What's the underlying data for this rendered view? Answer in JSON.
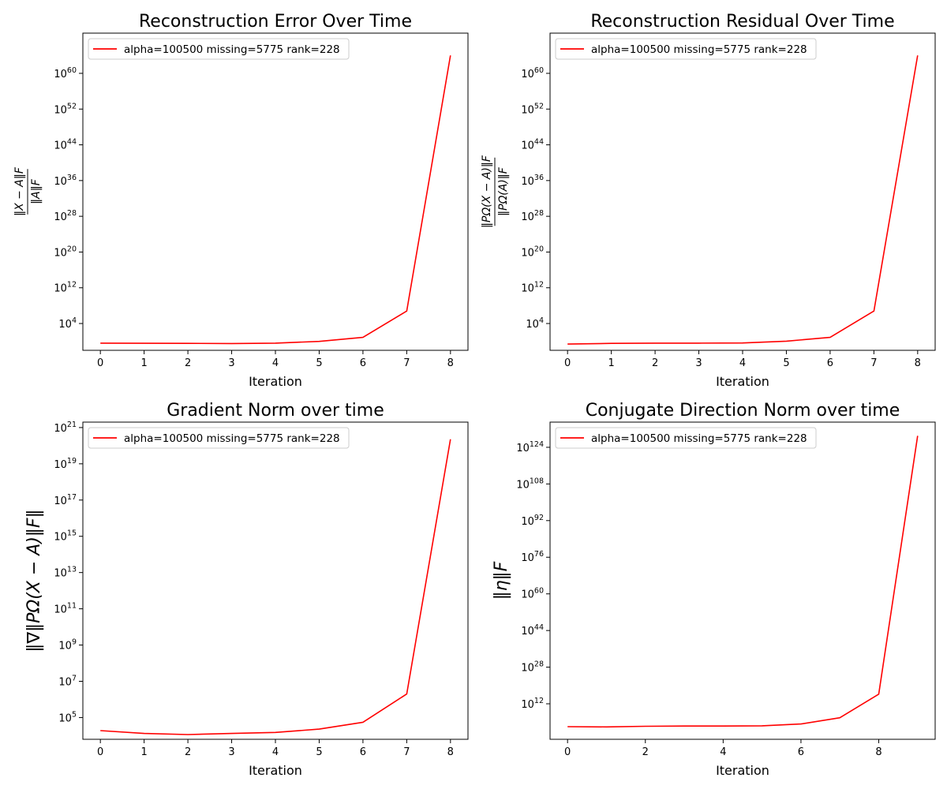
{
  "line_color": "#ff0000",
  "chart_data": [
    {
      "type": "line",
      "title": "Reconstruction Error Over Time",
      "xlabel": "Iteration",
      "ylabel": {
        "numerator": "‖X − A‖F",
        "denominator": "‖A‖F"
      },
      "yscale": "log",
      "grid": false,
      "legend_position": "top-left",
      "xlim": [
        -0.4,
        8.4
      ],
      "ylim_log10": [
        -2.0,
        69.0
      ],
      "xticks": [
        0,
        1,
        2,
        3,
        4,
        5,
        6,
        7,
        8
      ],
      "yticks_exp": [
        4,
        12,
        20,
        28,
        36,
        44,
        52,
        60
      ],
      "series": [
        {
          "name": "alpha=100500 missing=5775 rank=228",
          "color": "#ff0000",
          "x": [
            0,
            1,
            2,
            3,
            4,
            5,
            6,
            7,
            8
          ],
          "y_log10": [
            -0.4,
            -0.42,
            -0.45,
            -0.48,
            -0.4,
            0.0,
            0.9,
            6.8,
            64.0
          ]
        }
      ]
    },
    {
      "type": "line",
      "title": "Reconstruction Residual Over Time",
      "xlabel": "Iteration",
      "ylabel": {
        "numerator": "‖PΩ(X − A)‖F",
        "denominator": "‖PΩ(A)‖F"
      },
      "yscale": "log",
      "grid": false,
      "legend_position": "top-left",
      "xlim": [
        -0.4,
        8.4
      ],
      "ylim_log10": [
        -2.0,
        69.0
      ],
      "xticks": [
        0,
        1,
        2,
        3,
        4,
        5,
        6,
        7,
        8
      ],
      "yticks_exp": [
        4,
        12,
        20,
        28,
        36,
        44,
        52,
        60
      ],
      "series": [
        {
          "name": "alpha=100500 missing=5775 rank=228",
          "color": "#ff0000",
          "x": [
            0,
            1,
            2,
            3,
            4,
            5,
            6,
            7,
            8
          ],
          "y_log10": [
            -0.6,
            -0.45,
            -0.4,
            -0.4,
            -0.35,
            0.05,
            0.9,
            6.8,
            64.0
          ]
        }
      ]
    },
    {
      "type": "line",
      "title": "Gradient Norm over time",
      "xlabel": "Iteration",
      "ylabel": "‖∇‖PΩ(X − A)‖F‖",
      "yscale": "log",
      "grid": false,
      "legend_position": "top-left",
      "xlim": [
        -0.4,
        8.4
      ],
      "ylim_log10": [
        3.8,
        21.3
      ],
      "xticks": [
        0,
        1,
        2,
        3,
        4,
        5,
        6,
        7,
        8
      ],
      "yticks_exp": [
        5,
        7,
        9,
        11,
        13,
        15,
        17,
        19,
        21
      ],
      "series": [
        {
          "name": "alpha=100500 missing=5775 rank=228",
          "color": "#ff0000",
          "x": [
            0,
            1,
            2,
            3,
            4,
            5,
            6,
            7,
            8
          ],
          "y_log10": [
            4.28,
            4.12,
            4.06,
            4.12,
            4.18,
            4.36,
            4.74,
            6.3,
            20.35
          ]
        }
      ]
    },
    {
      "type": "line",
      "title": "Conjugate Direction Norm over time",
      "xlabel": "Iteration",
      "ylabel": "‖η‖F",
      "yscale": "log",
      "grid": false,
      "legend_position": "top-left",
      "xlim": [
        -0.45,
        9.45
      ],
      "ylim_log10": [
        -3.5,
        135.0
      ],
      "xticks": [
        0,
        2,
        4,
        6,
        8
      ],
      "yticks_exp": [
        12,
        28,
        44,
        60,
        76,
        92,
        108,
        124
      ],
      "series": [
        {
          "name": "alpha=100500 missing=5775 rank=228",
          "color": "#ff0000",
          "x": [
            0,
            1,
            2,
            3,
            4,
            5,
            6,
            7,
            8,
            9
          ],
          "y_log10": [
            2.0,
            1.9,
            2.2,
            2.3,
            2.3,
            2.4,
            3.2,
            5.9,
            16.2,
            129.0
          ]
        }
      ]
    }
  ]
}
